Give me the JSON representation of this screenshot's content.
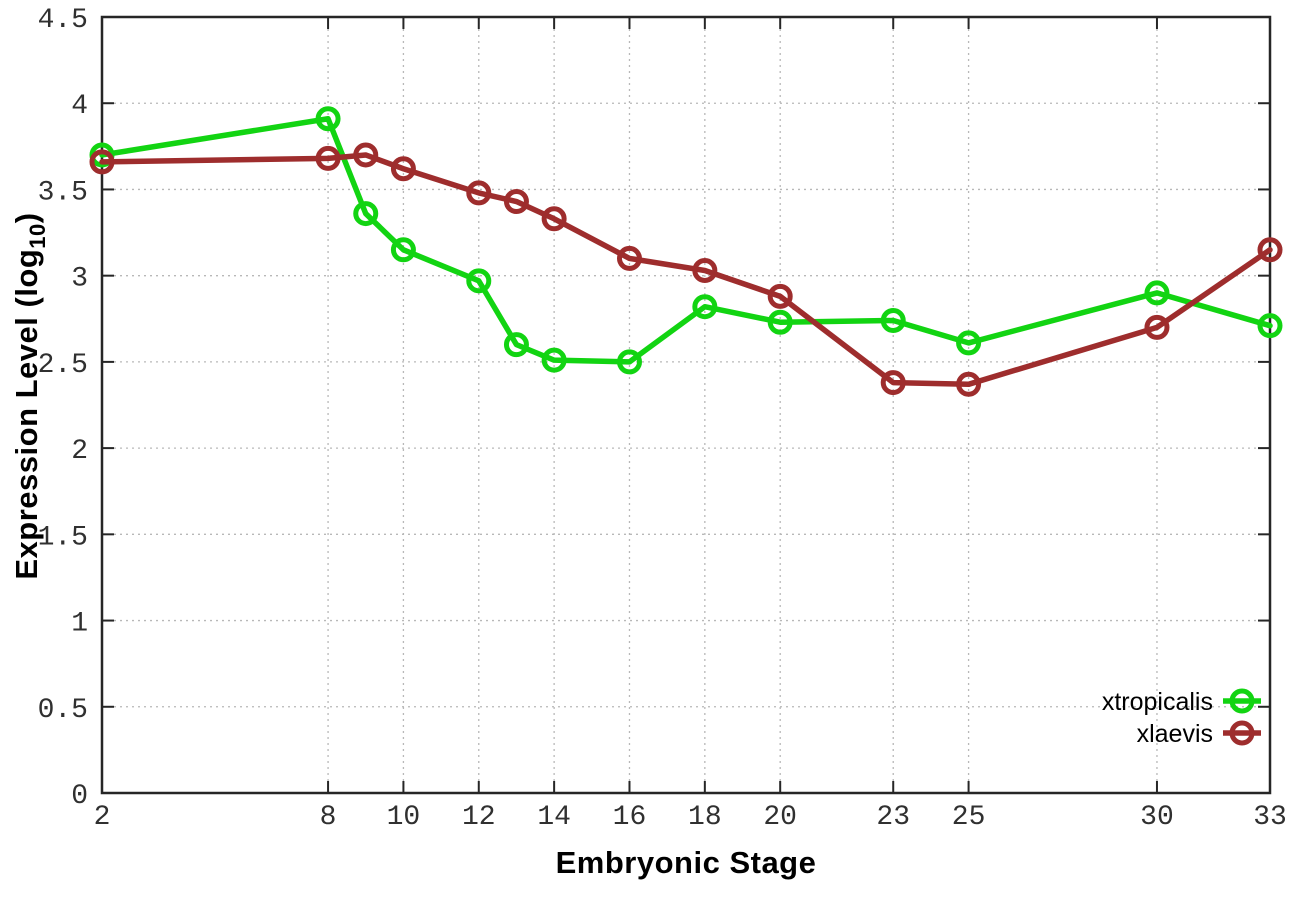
{
  "chart_data": {
    "type": "line",
    "title": "",
    "xlabel": "Embryonic Stage",
    "ylabel": "Expression Level (log10)",
    "ylabel_prefix": "Expression Level (log",
    "ylabel_subscript": "10",
    "ylabel_suffix": ")",
    "x": [
      2,
      8,
      9,
      10,
      12,
      13,
      14,
      16,
      18,
      20,
      23,
      25,
      30,
      33
    ],
    "series": [
      {
        "name": "xtropicalis",
        "color": "#12d412",
        "values": [
          3.7,
          3.91,
          3.36,
          3.15,
          2.97,
          2.6,
          2.51,
          2.5,
          2.82,
          2.73,
          2.74,
          2.61,
          2.9,
          2.71
        ]
      },
      {
        "name": "xlaevis",
        "color": "#9e2d2d",
        "values": [
          3.66,
          3.68,
          3.7,
          3.62,
          3.48,
          3.43,
          3.33,
          3.1,
          3.03,
          2.88,
          2.38,
          2.37,
          2.7,
          3.15
        ]
      }
    ],
    "xticks": [
      2,
      8,
      10,
      12,
      14,
      16,
      18,
      20,
      23,
      25,
      30,
      33
    ],
    "yticks": [
      0,
      0.5,
      1,
      1.5,
      2,
      2.5,
      3,
      3.5,
      4,
      4.5
    ],
    "xlim": [
      2,
      33
    ],
    "ylim": [
      0,
      4.5
    ],
    "grid": true,
    "legend_position": "bottom-right",
    "styles": {
      "border_color": "#262626",
      "grid_color": "#b8b8b8",
      "tick_label_color": "#303030",
      "legend_text_color": "#000000",
      "background": "#ffffff"
    }
  }
}
